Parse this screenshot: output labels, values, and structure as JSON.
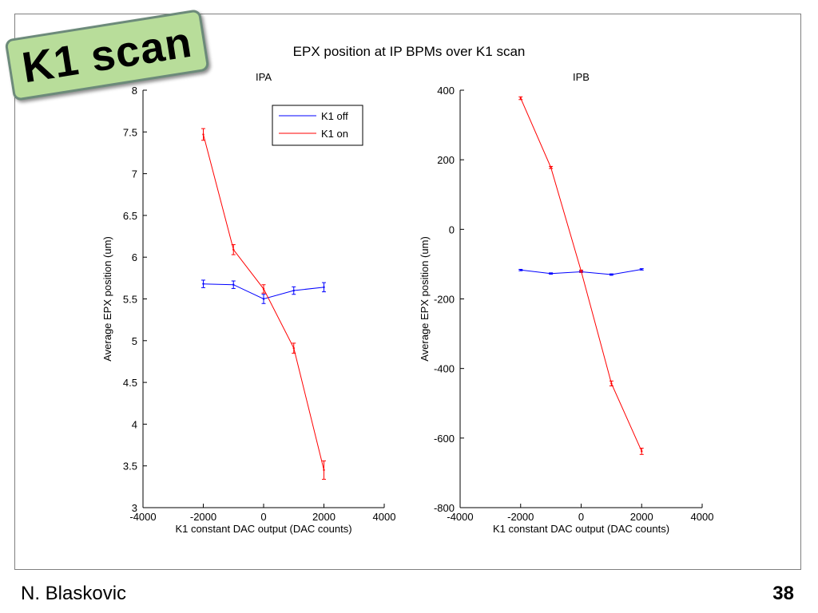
{
  "slide": {
    "title_badge": "K1 scan",
    "author": "N. Blaskovic",
    "page_number": "38"
  },
  "figure_title": "EPX position at IP BPMs over K1 scan",
  "colors": {
    "k1_off": "#0000ff",
    "k1_on": "#ff0000",
    "badge_fill": "#b8dd9a",
    "badge_border": "#6c8a7a"
  },
  "chart_data": [
    {
      "id": "ipa",
      "type": "line",
      "title": "IPA",
      "xlabel": "K1 constant DAC output (DAC counts)",
      "ylabel": "Average EPX position (um)",
      "xlim": [
        -4000,
        4000
      ],
      "ylim": [
        3,
        8
      ],
      "xticks": [
        -4000,
        -2000,
        0,
        2000,
        4000
      ],
      "yticks": [
        3,
        3.5,
        4,
        4.5,
        5,
        5.5,
        6,
        6.5,
        7,
        7.5,
        8
      ],
      "grid": false,
      "legend": {
        "placement": "top-right",
        "entries": [
          "K1 off",
          "K1 on"
        ]
      },
      "series": [
        {
          "name": "K1 off",
          "color": "#0000ff",
          "x": [
            -2000,
            -1000,
            0,
            1000,
            2000
          ],
          "y": [
            5.68,
            5.67,
            5.5,
            5.6,
            5.64
          ],
          "err": [
            0.045,
            0.045,
            0.055,
            0.045,
            0.055
          ]
        },
        {
          "name": "K1 on",
          "color": "#ff0000",
          "x": [
            -2000,
            -1000,
            0,
            1000,
            2000
          ],
          "y": [
            7.47,
            6.09,
            5.62,
            4.91,
            3.45
          ],
          "err": [
            0.07,
            0.06,
            0.05,
            0.06,
            0.11
          ]
        }
      ]
    },
    {
      "id": "ipb",
      "type": "line",
      "title": "IPB",
      "xlabel": "K1 constant DAC output (DAC counts)",
      "ylabel": "Average EPX position (um)",
      "xlim": [
        -4000,
        4000
      ],
      "ylim": [
        -800,
        400
      ],
      "xticks": [
        -4000,
        -2000,
        0,
        2000,
        4000
      ],
      "yticks": [
        -800,
        -600,
        -400,
        -200,
        0,
        200,
        400
      ],
      "grid": false,
      "series": [
        {
          "name": "K1 off",
          "color": "#0000ff",
          "x": [
            -2000,
            -1000,
            0,
            1000,
            2000
          ],
          "y": [
            -117,
            -127,
            -122,
            -130,
            -115
          ],
          "err": [
            2,
            2,
            2,
            2,
            2
          ]
        },
        {
          "name": "K1 on",
          "color": "#ff0000",
          "x": [
            -2000,
            -1000,
            0,
            1000,
            2000
          ],
          "y": [
            377,
            178,
            -120,
            -443,
            -638
          ],
          "err": [
            4,
            3,
            3,
            7,
            9
          ]
        }
      ]
    }
  ]
}
